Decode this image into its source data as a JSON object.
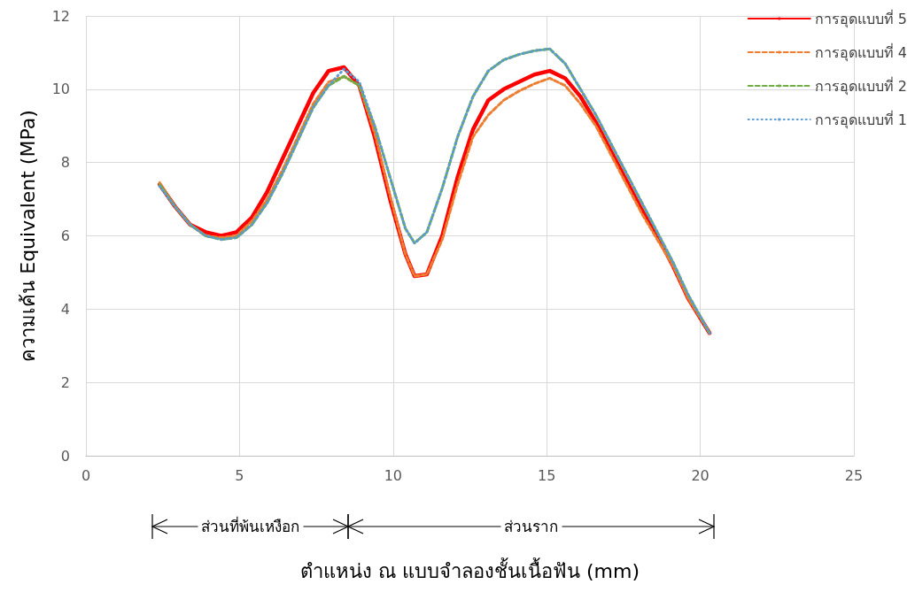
{
  "chart_data": {
    "type": "line",
    "ylabel": "ความเค้น Equivalent (MPa)",
    "xlabel": "ตำแหน่ง ณ แบบจำลองชั้นเนื้อฟัน (mm)",
    "x": [
      2.4,
      2.9,
      3.4,
      3.9,
      4.4,
      4.9,
      5.4,
      5.9,
      6.4,
      6.9,
      7.4,
      7.9,
      8.4,
      8.9,
      9.4,
      9.9,
      10.4,
      10.7,
      11.1,
      11.6,
      12.1,
      12.6,
      13.1,
      13.6,
      14.1,
      14.6,
      15.1,
      15.6,
      16.1,
      16.6,
      17.1,
      17.6,
      18.1,
      18.6,
      19.1,
      19.6,
      20.3
    ],
    "series": [
      {
        "name": "การอุดแบบที่ 5",
        "color": "#ff0000",
        "line_style": "solid",
        "values": [
          7.4,
          6.8,
          6.3,
          6.1,
          6.0,
          6.1,
          6.5,
          7.2,
          8.1,
          9.0,
          9.9,
          10.5,
          10.6,
          10.1,
          8.7,
          7.0,
          5.5,
          4.9,
          4.95,
          6.0,
          7.6,
          8.9,
          9.7,
          10.0,
          10.2,
          10.4,
          10.5,
          10.3,
          9.8,
          9.1,
          8.3,
          7.5,
          6.7,
          6.0,
          5.2,
          4.3,
          3.35
        ]
      },
      {
        "name": "การอุดแบบที่ 4",
        "color": "#ed7d31",
        "line_style": "dashed",
        "values": [
          7.45,
          6.8,
          6.3,
          6.0,
          5.95,
          6.0,
          6.4,
          7.0,
          7.8,
          8.7,
          9.6,
          10.2,
          10.35,
          10.1,
          8.8,
          7.1,
          5.5,
          4.9,
          4.95,
          5.9,
          7.4,
          8.7,
          9.3,
          9.7,
          9.95,
          10.15,
          10.3,
          10.1,
          9.6,
          9.0,
          8.2,
          7.4,
          6.6,
          5.9,
          5.2,
          4.3,
          3.35
        ]
      },
      {
        "name": "การอุดแบบที่ 2",
        "color": "#70ad47",
        "line_style": "dashed",
        "values": [
          7.4,
          6.8,
          6.3,
          6.0,
          5.9,
          5.95,
          6.3,
          6.9,
          7.7,
          8.6,
          9.5,
          10.1,
          10.35,
          10.1,
          9.0,
          7.6,
          6.2,
          5.8,
          6.1,
          7.3,
          8.7,
          9.8,
          10.5,
          10.8,
          10.95,
          11.05,
          11.1,
          10.7,
          10.0,
          9.3,
          8.5,
          7.7,
          6.9,
          6.1,
          5.3,
          4.4,
          3.35
        ]
      },
      {
        "name": "การอุดแบบที่ 1",
        "color": "#5b9bd5",
        "line_style": "dotted",
        "values": [
          7.35,
          6.8,
          6.3,
          6.0,
          5.9,
          5.95,
          6.3,
          6.9,
          7.7,
          8.6,
          9.5,
          10.1,
          10.55,
          10.2,
          9.0,
          7.6,
          6.2,
          5.8,
          6.1,
          7.3,
          8.7,
          9.8,
          10.5,
          10.8,
          10.95,
          11.05,
          11.1,
          10.7,
          10.0,
          9.3,
          8.5,
          7.7,
          6.9,
          6.1,
          5.3,
          4.4,
          3.35
        ]
      }
    ],
    "xlim": [
      0,
      25
    ],
    "xticks": [
      0,
      5,
      10,
      15,
      20,
      25
    ],
    "ylim": [
      0,
      12
    ],
    "yticks": [
      0,
      2,
      4,
      6,
      8,
      10,
      12
    ],
    "grid": true,
    "legend": "top right",
    "marker": "none",
    "annotations": [
      "ส่วนที่พ้นเหงือก",
      "ส่วนราก"
    ]
  }
}
